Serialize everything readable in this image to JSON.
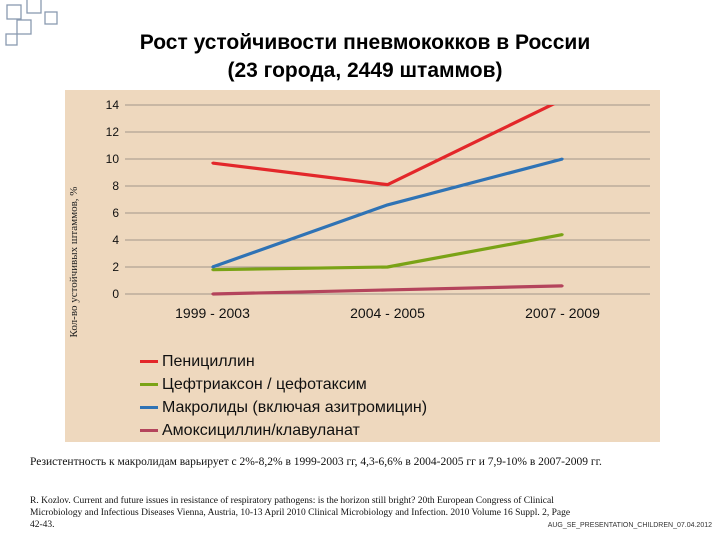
{
  "title": {
    "line1": "Рост устойчивости пневмококков в России",
    "line2": "(23 города, 2449 штаммов)"
  },
  "colors": {
    "plot_background": "#eed8be",
    "penicillin": "#e3272a",
    "ceftriaxone": "#7aa316",
    "macrolides": "#2f73b5",
    "amoxicillin": "#b4445c",
    "decoration": "#8a9ab0"
  },
  "chart_data": {
    "type": "line",
    "title": "Рост устойчивости пневмококков в России (23 города, 2449 штаммов)",
    "xlabel": "",
    "ylabel": "Кол-во устойчивых штаммов, %",
    "categories": [
      "1999 - 2003",
      "2004 - 2005",
      "2007 - 2009"
    ],
    "ylim": [
      0,
      14
    ],
    "yticks": [
      0,
      2,
      4,
      6,
      8,
      10,
      12,
      14
    ],
    "grid": true,
    "legend_position": "bottom-left",
    "series": [
      {
        "name": "Пенициллин",
        "values": [
          9.7,
          8.1,
          14.4
        ],
        "color": "#e3272a"
      },
      {
        "name": "Цефтриаксон / цефотаксим",
        "values": [
          1.8,
          2.0,
          4.4
        ],
        "color": "#7aa316"
      },
      {
        "name": "Макролиды (включая азитромицин)",
        "values": [
          2.0,
          6.6,
          10.0
        ],
        "color": "#2f73b5"
      },
      {
        "name": "Амоксициллин/клавуланат",
        "values": [
          0.0,
          0.3,
          0.6
        ],
        "color": "#b4445c"
      }
    ]
  },
  "note": "Резистентность к макролидам варьирует с 2%-8,2% в 1999-2003 гг, 4,3-6,6% в 2004-2005 гг и 7,9-10% в 2007-2009 гг.",
  "reference": {
    "line1": "R. Kozlov. Current and future issues in resistance of respiratory pathogens: is the horizon still bright? 20th European Congress of Clinical",
    "line2": "Microbiology and Infectious Diseases Vienna, Austria, 10-13 April 2010 Clinical Microbiology and Infection. 2010 Volume 16 Suppl. 2, Page",
    "line3": "42-43."
  },
  "footer_tag": "AUG_SE_PRESENTATION_CHILDREN_07.04.2012"
}
